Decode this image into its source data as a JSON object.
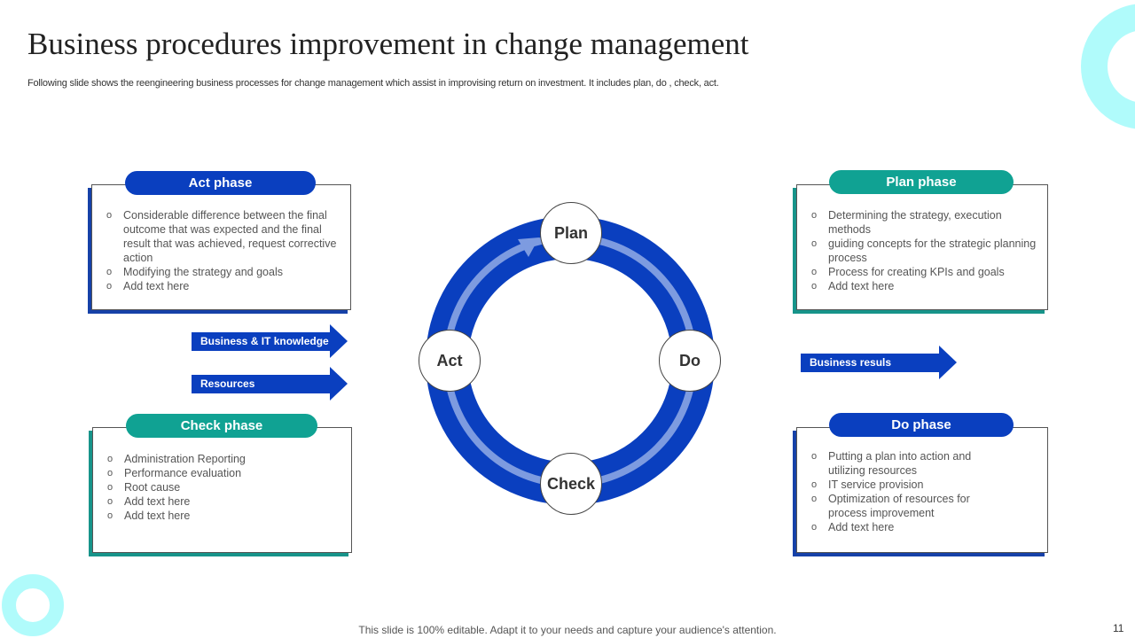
{
  "title": "Business procedures improvement in change management",
  "subtitle": "Following slide shows the reengineering business processes for change management which assist in improvising return on investment. It includes plan, do , check, act.",
  "act": {
    "title": "Act phase",
    "items": [
      "Considerable  difference  between the final outcome that was expected and the final result that was achieved,  request corrective  action",
      "Modifying the strategy and goals",
      "Add text here"
    ]
  },
  "check": {
    "title": "Check phase",
    "items": [
      "Administration Reporting",
      "Performance  evaluation",
      "Root cause",
      "Add text here",
      "Add text here"
    ]
  },
  "plan": {
    "title": "Plan phase",
    "items": [
      "Determining the strategy, execution methods",
      "guiding concepts for the strategic planning process",
      "Process for creating KPIs and goals",
      "Add text here"
    ]
  },
  "do": {
    "title": "Do phase",
    "items": [
      "Putting a plan into action and utilizing resources",
      "IT service  provision",
      "Optimization of resources for process improvement",
      "Add text here"
    ]
  },
  "inputs": [
    "Business & IT knowledge",
    "Resources"
  ],
  "output": "Business resuls",
  "cycle": {
    "plan": "Plan",
    "do": "Do",
    "check": "Check",
    "act": "Act"
  },
  "footer": "This slide is 100% editable. Adapt it to your needs and capture your audience's attention.",
  "page_number": "11",
  "colors": {
    "blue": "#0a3fbf",
    "teal": "#10a293",
    "light_arc": "#7d9be0",
    "accent_cyan": "#aefbfb"
  }
}
